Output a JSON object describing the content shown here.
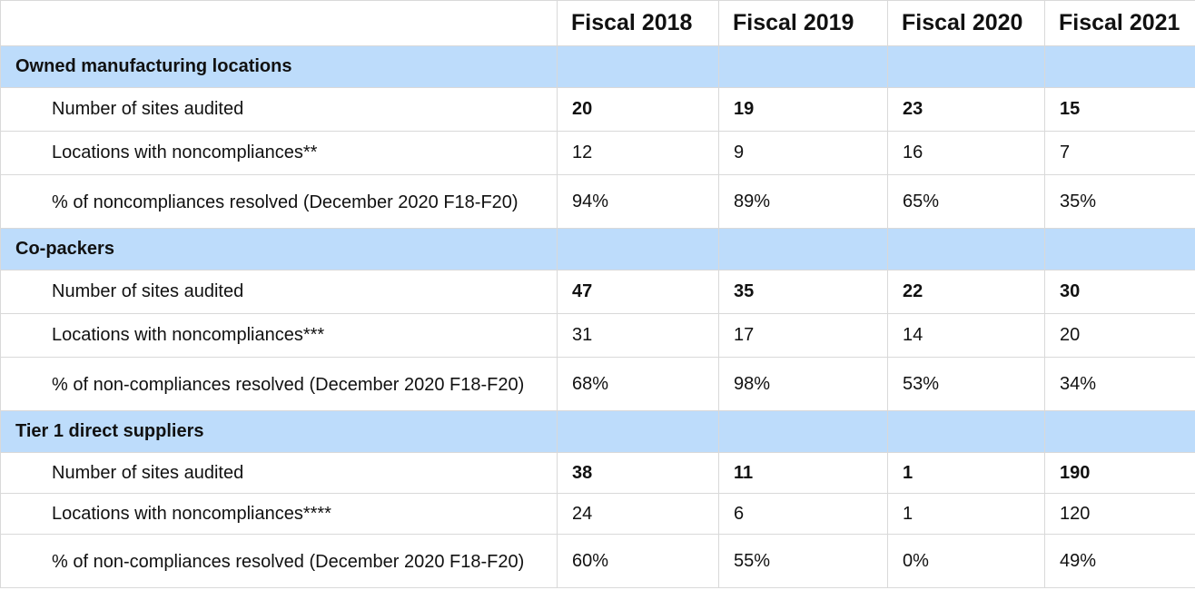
{
  "header": {
    "blank": "",
    "columns": [
      "Fiscal 2018",
      "Fiscal 2019",
      "Fiscal 2020",
      "Fiscal 2021"
    ]
  },
  "sections": [
    {
      "title": "Owned manufacturing locations",
      "rows": [
        {
          "label": "Number of sites audited",
          "values": [
            "20",
            "19",
            "23",
            "15"
          ]
        },
        {
          "label": "Locations with noncompliances**",
          "values": [
            "12",
            "9",
            "16",
            "7"
          ]
        },
        {
          "label": "% of noncompliances resolved (December 2020 F18-F20)",
          "values": [
            "94%",
            "89%",
            "65%",
            "35%"
          ]
        }
      ]
    },
    {
      "title": "Co-packers",
      "rows": [
        {
          "label": "Number of sites audited",
          "values": [
            "47",
            "35",
            "22",
            "30"
          ]
        },
        {
          "label": "Locations with noncompliances***",
          "values": [
            "31",
            "17",
            "14",
            "20"
          ]
        },
        {
          "label": "% of non-compliances resolved (December 2020 F18-F20)",
          "values": [
            "68%",
            "98%",
            "53%",
            "34%"
          ]
        }
      ]
    },
    {
      "title": "Tier 1 direct suppliers",
      "rows": [
        {
          "label": "Number of sites audited",
          "values": [
            "38",
            "11",
            "1",
            "190"
          ]
        },
        {
          "label": "Locations with noncompliances****",
          "values": [
            "24",
            "6",
            "1",
            "120"
          ]
        },
        {
          "label": "% of non-compliances resolved (December 2020 F18-F20)",
          "values": [
            "60%",
            "55%",
            "0%",
            "49%"
          ]
        }
      ]
    }
  ]
}
